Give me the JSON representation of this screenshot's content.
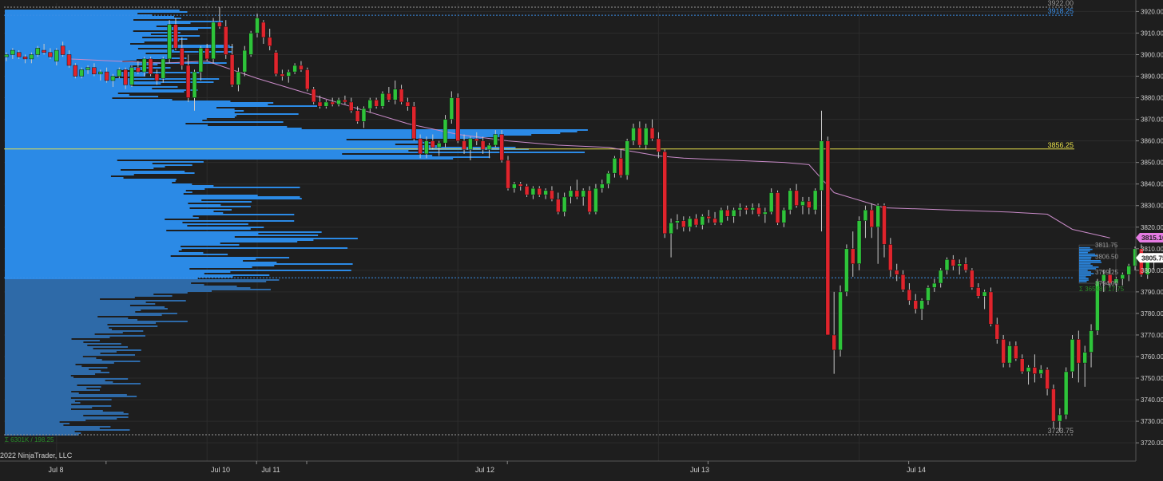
{
  "copyright": "2022 NinjaTrader, LLC",
  "colors": {
    "background": "#1e1e1e",
    "grid": "#2c2c2c",
    "up": "#2ec43a",
    "down": "#e0242c",
    "wick": "#c8c8c8",
    "profile": "#2b8ae6",
    "profile_low": "#2e6aa8",
    "vwap": "#c98bc8",
    "poc": "#e8e04a",
    "high_low": "#9a9a9a",
    "value_area": "#3a8ee6",
    "current_price_tag": "#ffffff",
    "vwap_tag": "#e57be3",
    "stats_text": "#2a8a2a"
  },
  "chart_data": {
    "type": "candlestick",
    "title": "",
    "xlabel": "",
    "ylabel": "",
    "ylim": [
      3715,
      3925
    ],
    "y_ticks": [
      3720,
      3730,
      3740,
      3750,
      3760,
      3770,
      3780,
      3790,
      3800,
      3810,
      3820,
      3830,
      3840,
      3850,
      3860,
      3870,
      3880,
      3890,
      3900,
      3910,
      3920
    ],
    "y_tick_labels": [
      "3720.00",
      "3730.00",
      "3740.00",
      "3750.00",
      "3760.00",
      "3770.00",
      "3780.00",
      "3790.00",
      "3800.00",
      "3810.00",
      "3820.00",
      "3830.00",
      "3840.00",
      "3850.00",
      "3860.00",
      "3870.00",
      "3880.00",
      "3890.00",
      "3900.00",
      "3910.00",
      "3920.00"
    ],
    "x_ticks": [
      {
        "label": "Jul 8",
        "bar": 8
      },
      {
        "label": "Jul 10",
        "bar": 32
      },
      {
        "label": "Jul 11",
        "bar": 40
      },
      {
        "label": "Jul 12",
        "bar": 72
      },
      {
        "label": "Jul 13",
        "bar": 104
      },
      {
        "label": "Jul 14",
        "bar": 136
      }
    ],
    "grid": true,
    "candles_ohlc": [
      [
        3899,
        3901,
        3897,
        3900
      ],
      [
        3900,
        3903,
        3898,
        3902
      ],
      [
        3901,
        3902,
        3898,
        3899
      ],
      [
        3899,
        3900,
        3896,
        3898
      ],
      [
        3898,
        3901,
        3896,
        3900
      ],
      [
        3900,
        3904,
        3899,
        3903
      ],
      [
        3902,
        3905,
        3900,
        3901
      ],
      [
        3901,
        3903,
        3898,
        3899
      ],
      [
        3897,
        3903,
        3895,
        3902
      ],
      [
        3904,
        3906,
        3899,
        3900
      ],
      [
        3900,
        3902,
        3894,
        3895
      ],
      [
        3895,
        3896,
        3889,
        3890
      ],
      [
        3890,
        3894,
        3889,
        3893
      ],
      [
        3893,
        3895,
        3891,
        3894
      ],
      [
        3894,
        3896,
        3890,
        3891
      ],
      [
        3891,
        3893,
        3888,
        3892
      ],
      [
        3892,
        3894,
        3887,
        3888
      ],
      [
        3888,
        3891,
        3885,
        3890
      ],
      [
        3890,
        3894,
        3889,
        3893
      ],
      [
        3893,
        3894,
        3884,
        3886
      ],
      [
        3886,
        3895,
        3885,
        3894
      ],
      [
        3894,
        3897,
        3891,
        3892
      ],
      [
        3892,
        3899,
        3890,
        3898
      ],
      [
        3898,
        3899,
        3890,
        3891
      ],
      [
        3891,
        3893,
        3886,
        3888
      ],
      [
        3889,
        3899,
        3887,
        3898
      ],
      [
        3898,
        3916,
        3896,
        3914
      ],
      [
        3914,
        3917,
        3902,
        3903
      ],
      [
        3903,
        3908,
        3893,
        3895
      ],
      [
        3895,
        3900,
        3878,
        3880
      ],
      [
        3880,
        3893,
        3874,
        3892
      ],
      [
        3892,
        3904,
        3888,
        3903
      ],
      [
        3903,
        3905,
        3897,
        3898
      ],
      [
        3898,
        3917,
        3896,
        3915
      ],
      [
        3915,
        3922,
        3912,
        3913
      ],
      [
        3913,
        3916,
        3898,
        3900
      ],
      [
        3900,
        3905,
        3885,
        3886
      ],
      [
        3886,
        3894,
        3883,
        3892
      ],
      [
        3892,
        3904,
        3890,
        3902
      ],
      [
        3900,
        3911,
        3899,
        3910
      ],
      [
        3910,
        3919,
        3908,
        3917
      ],
      [
        3915,
        3916,
        3905,
        3908
      ],
      [
        3908,
        3912,
        3902,
        3904
      ],
      [
        3901,
        3902,
        3890,
        3891
      ],
      [
        3891,
        3893,
        3888,
        3890
      ],
      [
        3890,
        3893,
        3887,
        3892
      ],
      [
        3892,
        3896,
        3891,
        3895
      ],
      [
        3895,
        3897,
        3892,
        3893
      ],
      [
        3893,
        3894,
        3883,
        3884
      ],
      [
        3884,
        3885,
        3877,
        3878
      ],
      [
        3878,
        3881,
        3875,
        3876
      ],
      [
        3876,
        3879,
        3875,
        3878
      ],
      [
        3878,
        3880,
        3876,
        3877
      ],
      [
        3877,
        3880,
        3876,
        3879
      ],
      [
        3879,
        3881,
        3877,
        3878
      ],
      [
        3878,
        3880,
        3873,
        3874
      ],
      [
        3874,
        3876,
        3868,
        3869
      ],
      [
        3869,
        3876,
        3866,
        3875
      ],
      [
        3875,
        3880,
        3873,
        3879
      ],
      [
        3879,
        3880,
        3875,
        3876
      ],
      [
        3876,
        3883,
        3875,
        3882
      ],
      [
        3882,
        3885,
        3878,
        3879
      ],
      [
        3879,
        3888,
        3877,
        3884
      ],
      [
        3884,
        3886,
        3877,
        3878
      ],
      [
        3878,
        3880,
        3874,
        3876
      ],
      [
        3876,
        3878,
        3860,
        3861
      ],
      [
        3861,
        3863,
        3852,
        3854
      ],
      [
        3854,
        3862,
        3852,
        3860
      ],
      [
        3860,
        3863,
        3856,
        3857
      ],
      [
        3857,
        3860,
        3853,
        3859
      ],
      [
        3859,
        3872,
        3857,
        3870
      ],
      [
        3870,
        3883,
        3868,
        3880
      ],
      [
        3880,
        3882,
        3859,
        3860
      ],
      [
        3860,
        3863,
        3854,
        3856
      ],
      [
        3856,
        3862,
        3851,
        3861
      ],
      [
        3861,
        3864,
        3858,
        3860
      ],
      [
        3860,
        3862,
        3854,
        3856
      ],
      [
        3856,
        3859,
        3852,
        3858
      ],
      [
        3858,
        3865,
        3857,
        3863
      ],
      [
        3863,
        3865,
        3850,
        3851
      ],
      [
        3851,
        3853,
        3837,
        3838
      ],
      [
        3838,
        3841,
        3836,
        3840
      ],
      [
        3840,
        3841,
        3837,
        3839
      ],
      [
        3839,
        3840,
        3834,
        3835
      ],
      [
        3835,
        3839,
        3833,
        3838
      ],
      [
        3838,
        3839,
        3834,
        3835
      ],
      [
        3835,
        3838,
        3833,
        3837
      ],
      [
        3837,
        3839,
        3832,
        3833
      ],
      [
        3833,
        3836,
        3826,
        3827
      ],
      [
        3827,
        3836,
        3825,
        3834
      ],
      [
        3834,
        3839,
        3831,
        3837
      ],
      [
        3837,
        3842,
        3833,
        3834
      ],
      [
        3834,
        3838,
        3830,
        3837
      ],
      [
        3837,
        3839,
        3826,
        3827
      ],
      [
        3827,
        3840,
        3826,
        3838
      ],
      [
        3838,
        3842,
        3836,
        3840
      ],
      [
        3840,
        3846,
        3838,
        3845
      ],
      [
        3845,
        3853,
        3843,
        3852
      ],
      [
        3852,
        3856,
        3843,
        3844
      ],
      [
        3844,
        3861,
        3842,
        3860
      ],
      [
        3860,
        3868,
        3858,
        3866
      ],
      [
        3866,
        3869,
        3857,
        3858
      ],
      [
        3858,
        3868,
        3856,
        3866
      ],
      [
        3866,
        3870,
        3860,
        3861
      ],
      [
        3861,
        3864,
        3852,
        3855
      ],
      [
        3855,
        3856,
        3815,
        3817
      ],
      [
        3817,
        3824,
        3806,
        3822
      ],
      [
        3822,
        3826,
        3819,
        3823
      ],
      [
        3823,
        3825,
        3818,
        3820
      ],
      [
        3820,
        3825,
        3818,
        3824
      ],
      [
        3824,
        3826,
        3820,
        3821
      ],
      [
        3821,
        3826,
        3819,
        3825
      ],
      [
        3825,
        3828,
        3822,
        3824
      ],
      [
        3824,
        3827,
        3821,
        3822
      ],
      [
        3822,
        3829,
        3821,
        3828
      ],
      [
        3828,
        3830,
        3823,
        3825
      ],
      [
        3825,
        3829,
        3822,
        3828
      ],
      [
        3828,
        3831,
        3825,
        3829
      ],
      [
        3829,
        3830,
        3826,
        3828
      ],
      [
        3828,
        3831,
        3826,
        3829
      ],
      [
        3829,
        3831,
        3825,
        3826
      ],
      [
        3826,
        3829,
        3822,
        3827
      ],
      [
        3827,
        3838,
        3826,
        3836
      ],
      [
        3836,
        3837,
        3821,
        3822
      ],
      [
        3822,
        3829,
        3820,
        3828
      ],
      [
        3828,
        3838,
        3826,
        3837
      ],
      [
        3837,
        3840,
        3829,
        3830
      ],
      [
        3830,
        3834,
        3826,
        3832
      ],
      [
        3832,
        3834,
        3826,
        3829
      ],
      [
        3828,
        3838,
        3826,
        3837
      ],
      [
        3837,
        3874,
        3818,
        3860
      ],
      [
        3860,
        3862,
        3808,
        3770
      ],
      [
        3770,
        3790,
        3752,
        3763
      ],
      [
        3763,
        3793,
        3760,
        3790
      ],
      [
        3790,
        3812,
        3788,
        3810
      ],
      [
        3810,
        3818,
        3797,
        3803
      ],
      [
        3803,
        3825,
        3800,
        3823
      ],
      [
        3823,
        3830,
        3815,
        3828
      ],
      [
        3828,
        3831,
        3815,
        3820
      ],
      [
        3820,
        3831,
        3803,
        3830
      ],
      [
        3830,
        3831,
        3806,
        3812
      ],
      [
        3812,
        3815,
        3797,
        3800
      ],
      [
        3800,
        3803,
        3795,
        3798
      ],
      [
        3798,
        3800,
        3790,
        3791
      ],
      [
        3791,
        3794,
        3784,
        3786
      ],
      [
        3786,
        3789,
        3780,
        3782
      ],
      [
        3782,
        3787,
        3777,
        3786
      ],
      [
        3786,
        3793,
        3784,
        3792
      ],
      [
        3792,
        3796,
        3790,
        3794
      ],
      [
        3794,
        3801,
        3792,
        3800
      ],
      [
        3800,
        3806,
        3798,
        3805
      ],
      [
        3805,
        3807,
        3800,
        3802
      ],
      [
        3802,
        3805,
        3798,
        3803
      ],
      [
        3803,
        3806,
        3799,
        3800
      ],
      [
        3800,
        3801,
        3791,
        3792
      ],
      [
        3792,
        3794,
        3787,
        3788
      ],
      [
        3788,
        3791,
        3782,
        3790
      ],
      [
        3790,
        3792,
        3774,
        3775
      ],
      [
        3775,
        3778,
        3766,
        3768
      ],
      [
        3768,
        3770,
        3755,
        3757
      ],
      [
        3757,
        3767,
        3755,
        3765
      ],
      [
        3765,
        3767,
        3758,
        3759
      ],
      [
        3759,
        3761,
        3752,
        3753
      ],
      [
        3753,
        3756,
        3747,
        3755
      ],
      [
        3755,
        3761,
        3748,
        3752
      ],
      [
        3752,
        3756,
        3750,
        3754
      ],
      [
        3754,
        3755,
        3742,
        3745
      ],
      [
        3745,
        3747,
        3727,
        3730
      ],
      [
        3730,
        3736,
        3725,
        3733
      ],
      [
        3733,
        3755,
        3731,
        3753
      ],
      [
        3753,
        3770,
        3750,
        3768
      ],
      [
        3768,
        3772,
        3748,
        3757
      ],
      [
        3757,
        3765,
        3746,
        3762
      ],
      [
        3762,
        3775,
        3755,
        3772
      ],
      [
        3772,
        3796,
        3770,
        3795
      ],
      [
        3795,
        3800,
        3790,
        3798
      ],
      [
        3798,
        3801,
        3792,
        3794
      ],
      [
        3794,
        3797,
        3790,
        3796
      ],
      [
        3796,
        3799,
        3793,
        3798
      ],
      [
        3798,
        3803,
        3795,
        3802
      ],
      [
        3802,
        3811,
        3800,
        3810
      ],
      [
        3810,
        3812,
        3797,
        3798
      ],
      [
        3798,
        3805,
        3796,
        3804
      ],
      [
        3804,
        3808,
        3800,
        3806
      ]
    ],
    "vwap_path": [
      [
        10,
        3898
      ],
      [
        25,
        3896
      ],
      [
        32,
        3897
      ],
      [
        40,
        3889
      ],
      [
        48,
        3882
      ],
      [
        56,
        3875
      ],
      [
        64,
        3868
      ],
      [
        72,
        3863
      ],
      [
        80,
        3860
      ],
      [
        88,
        3858
      ],
      [
        96,
        3857
      ],
      [
        104,
        3853
      ],
      [
        108,
        3852
      ],
      [
        116,
        3851
      ],
      [
        124,
        3850
      ],
      [
        128,
        3849
      ],
      [
        132,
        3836
      ],
      [
        140,
        3829
      ],
      [
        150,
        3828
      ],
      [
        160,
        3827
      ],
      [
        166,
        3826
      ],
      [
        170,
        3819
      ],
      [
        176,
        3815
      ]
    ],
    "annotations": {
      "high_label": "3922.00",
      "value_area_high_label": "3918.25",
      "poc_label": "3856.25",
      "low_label": "3723.75",
      "session_high_label": "3811.75",
      "session_poc_label": "3806.50",
      "session_vah_label": "3801.50",
      "session_val_label": "3799.25",
      "session_val2_label": "3796.50",
      "session_low_label": "3794.00",
      "session_stats": "Σ 36548 / 17.75",
      "profile_stats": "Σ 6301K / 198.25",
      "vwap_tag": "3815.10",
      "price_tag": "3805.75"
    }
  }
}
